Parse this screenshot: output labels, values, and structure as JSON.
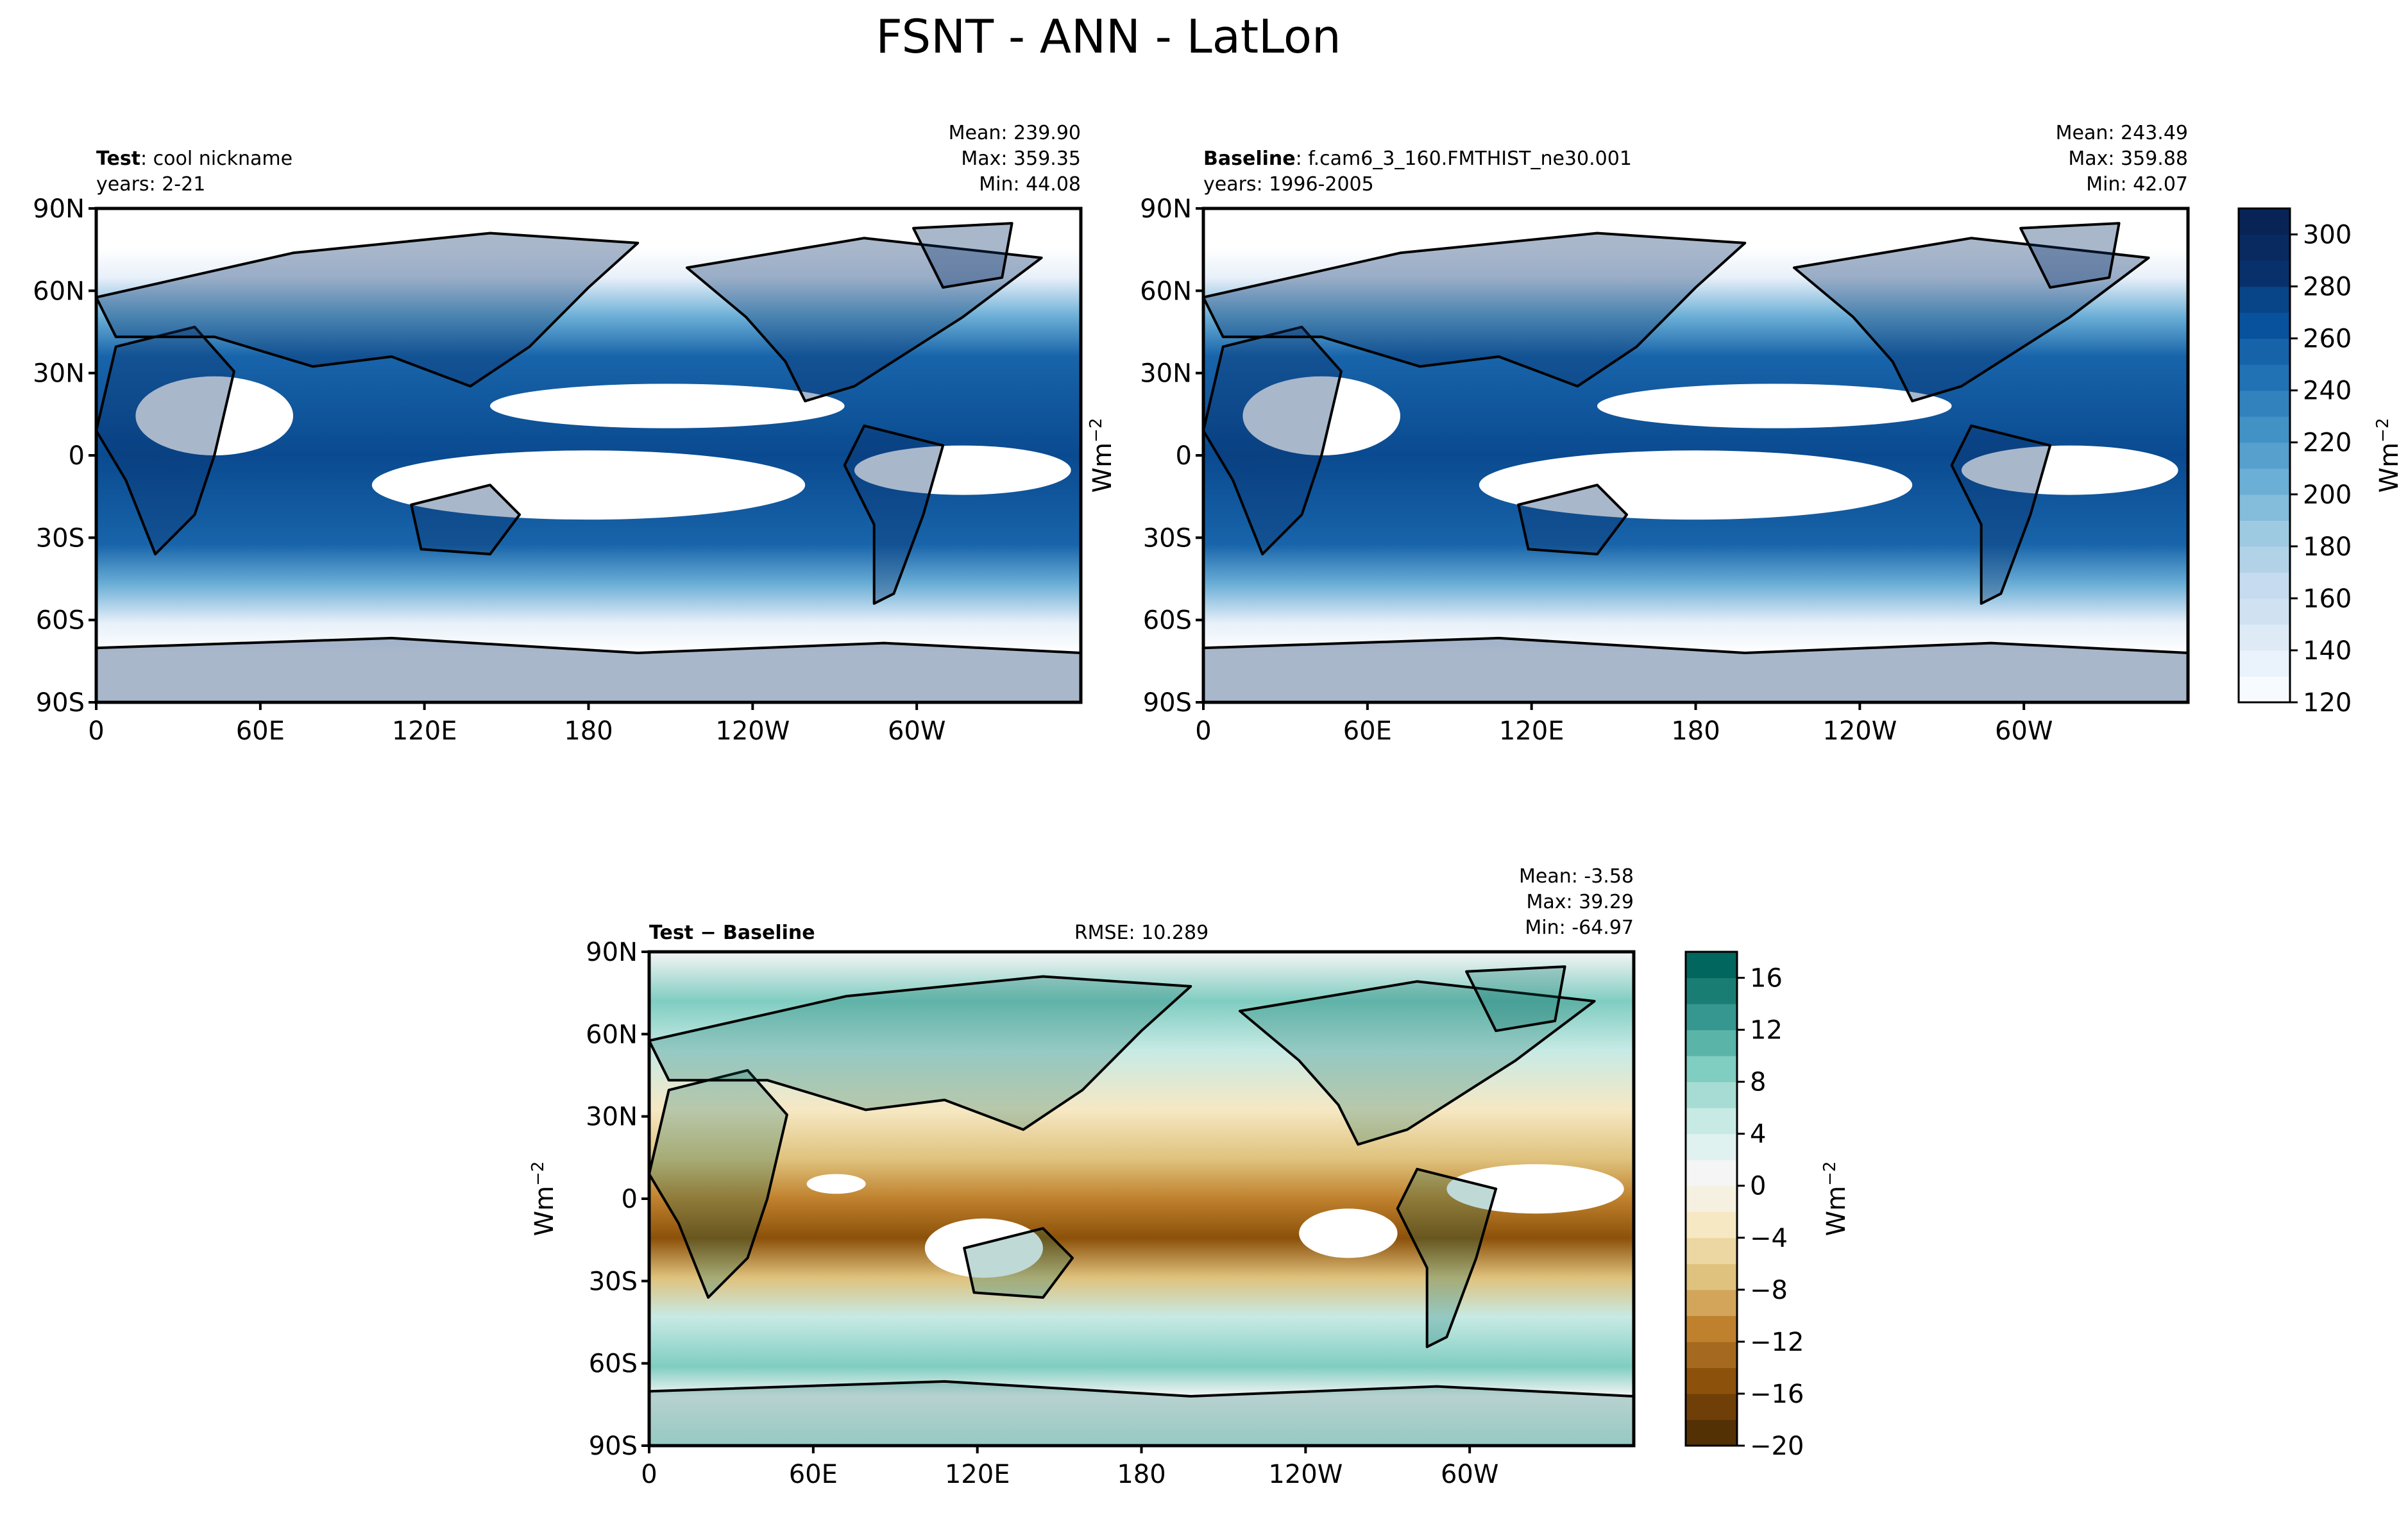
{
  "figure": {
    "suptitle": "FSNT - ANN - LatLon"
  },
  "colors": {
    "blues_low": "#f7fbff",
    "blues_high": "#08306b",
    "diff_negative": "#543005",
    "diff_zero": "#f5f5f5",
    "diff_positive": "#003c30",
    "coastline": "#000000"
  },
  "chart_data": [
    {
      "type": "heatmap",
      "panel": "test",
      "title_bold": "Test",
      "title_rest": ": cool nickname",
      "subtitle": "years: 2-21",
      "stats": [
        "Mean: 239.90",
        "Max: 359.35",
        "Min: 44.08"
      ],
      "mean": 239.9,
      "max": 359.35,
      "min": 44.08,
      "x_ticks": [
        "0",
        "60E",
        "120E",
        "180",
        "120W",
        "60W"
      ],
      "y_ticks": [
        "90N",
        "60N",
        "30N",
        "0",
        "30S",
        "60S",
        "90S"
      ],
      "xlim": [
        0,
        360
      ],
      "ylim": [
        -90,
        90
      ],
      "colormap": "Blues"
    },
    {
      "type": "heatmap",
      "panel": "baseline",
      "title_bold": "Baseline",
      "title_rest": ": f.cam6_3_160.FMTHIST_ne30.001",
      "subtitle": "years: 1996-2005",
      "stats": [
        "Mean: 243.49",
        "Max: 359.88",
        "Min: 42.07"
      ],
      "mean": 243.49,
      "max": 359.88,
      "min": 42.07,
      "x_ticks": [
        "0",
        "60E",
        "120E",
        "180",
        "120W",
        "60W"
      ],
      "y_ticks": [
        "90N",
        "60N",
        "30N",
        "0",
        "30S",
        "60S",
        "90S"
      ],
      "xlim": [
        0,
        360
      ],
      "ylim": [
        -90,
        90
      ],
      "colormap": "Blues",
      "colorbar": {
        "label": "Wm$^{-2}$",
        "label_text": "Wm",
        "label_sup": "−2",
        "ticks": [
          "120",
          "140",
          "160",
          "180",
          "200",
          "220",
          "240",
          "260",
          "280",
          "300"
        ],
        "range": [
          120,
          310
        ],
        "levels": 19
      },
      "ylabel_text": "Wm",
      "ylabel_sup": "−2"
    },
    {
      "type": "heatmap",
      "panel": "difference",
      "title_bold": "Test − Baseline",
      "rmse": "RMSE: 10.289",
      "stats": [
        "Mean: -3.58",
        "Max: 39.29",
        "Min: -64.97"
      ],
      "mean": -3.58,
      "max": 39.29,
      "min": -64.97,
      "x_ticks": [
        "0",
        "60E",
        "120E",
        "180",
        "120W",
        "60W"
      ],
      "y_ticks": [
        "90N",
        "60N",
        "30N",
        "0",
        "30S",
        "60S",
        "90S"
      ],
      "xlim": [
        0,
        360
      ],
      "ylim": [
        -90,
        90
      ],
      "colormap": "BrBG",
      "ylabel_text": "Wm",
      "ylabel_sup": "−2",
      "colorbar": {
        "label_text": "Wm",
        "label_sup": "−2",
        "ticks": [
          "−20",
          "−16",
          "−12",
          "−8",
          "−4",
          "0",
          "4",
          "8",
          "12",
          "16"
        ],
        "range": [
          -20,
          18
        ],
        "levels": 19
      }
    }
  ]
}
